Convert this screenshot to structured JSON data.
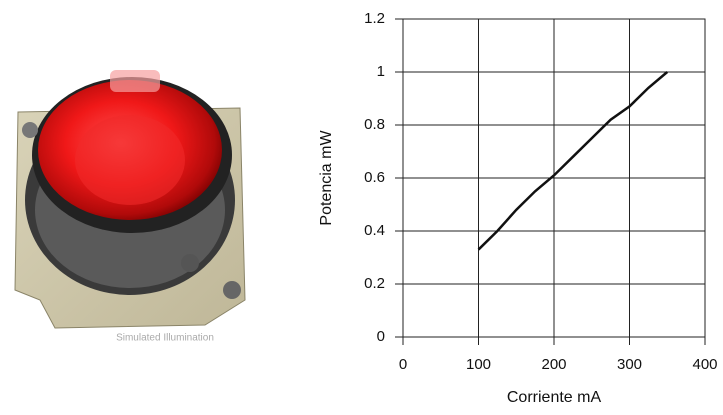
{
  "photo": {
    "caption": "Simulated Illumination"
  },
  "chart_data": {
    "type": "line",
    "x": [
      100,
      125,
      150,
      175,
      200,
      225,
      250,
      275,
      300,
      325,
      350
    ],
    "values": [
      0.33,
      0.4,
      0.48,
      0.55,
      0.61,
      0.68,
      0.75,
      0.82,
      0.87,
      0.94,
      1.0
    ],
    "color": "#111111",
    "xlabel": "Corriente mA",
    "ylabel": "Potencia mW",
    "xlim": [
      0,
      400
    ],
    "xticks": [
      0,
      100,
      200,
      300,
      400
    ],
    "ylim": [
      0,
      1.2
    ],
    "yticks": [
      0,
      0.2,
      0.4,
      0.6,
      0.8,
      1,
      1.2
    ],
    "grid": true
  }
}
